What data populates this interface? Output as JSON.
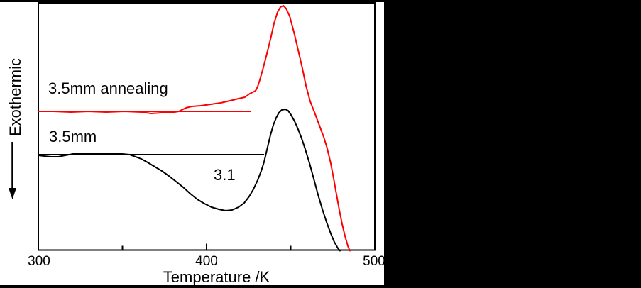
{
  "figure": {
    "background_color": "#ffffff",
    "side_panel_color": "#000000",
    "frame_color": "#000000"
  },
  "labels": {
    "y_axis": "Exothermic",
    "y_axis_arrow_direction": "down",
    "x_axis": "Temperature /K",
    "curve_red": "3.5mm annealing",
    "curve_black": "3.5mm",
    "annotation": "3.1"
  },
  "chart_data": {
    "type": "line",
    "title": "",
    "xlabel": "Temperature /K",
    "ylabel": "Exothermic (arrow pointing down, arbitrary units)",
    "x_range": [
      300,
      500
    ],
    "grid": false,
    "legend": "inline text labels",
    "x_axis": {
      "tick_labels": [
        "300",
        "400",
        "500"
      ],
      "major_ticks": [
        300,
        400,
        500
      ],
      "minor_ticks": [
        350,
        450
      ],
      "ticks_inward": true
    },
    "y_units_note": "u = arbitrary signal, pixels above x-axis; no y scale shown",
    "mapping": {
      "t_min": 300,
      "t_max": 500,
      "x_min": 54,
      "x_max": 528,
      "y_bottom": 352.5
    },
    "features": {
      "red_baseline_level_u": 195.5,
      "black_baseline_level_u": 134.5,
      "red_peak_K": 446,
      "red_peak_u": 344.5,
      "black_peak_K": 447,
      "black_peak_u": 198.5,
      "black_dip_K": 411,
      "black_dip_u": 55.5,
      "red_curve_ends_K": 485,
      "black_curve_ends_K": 479
    },
    "baselines": [
      {
        "id": "red-baseline",
        "color": "#ff0000",
        "t_start": 300,
        "t_end": 426.2,
        "u": 195.5
      },
      {
        "id": "black-baseline",
        "color": "#000000",
        "t_start": 300,
        "t_end": 434.2,
        "u": 134.5
      }
    ],
    "series": [
      {
        "id": "curve-annealing",
        "name": "3.5mm annealing",
        "color": "#ff0000",
        "points": [
          [
            300,
            195.5
          ],
          [
            308.9,
            195.5
          ],
          [
            319.4,
            194.5
          ],
          [
            330,
            195.5
          ],
          [
            340.5,
            194.5
          ],
          [
            351.1,
            195.5
          ],
          [
            361.6,
            194.5
          ],
          [
            367.1,
            192.5
          ],
          [
            373,
            193.5
          ],
          [
            378.5,
            193.5
          ],
          [
            383.5,
            195.5
          ],
          [
            387.8,
            200.5
          ],
          [
            391.1,
            202.5
          ],
          [
            396.6,
            203.5
          ],
          [
            402.5,
            205.5
          ],
          [
            408.4,
            207.5
          ],
          [
            413.9,
            210.5
          ],
          [
            419,
            213.5
          ],
          [
            422.8,
            215.5
          ],
          [
            425.7,
            220.5
          ],
          [
            427.4,
            222.5
          ],
          [
            429.1,
            224.5
          ],
          [
            430.4,
            230.5
          ],
          [
            431.6,
            239.5
          ],
          [
            433.3,
            253.5
          ],
          [
            435.4,
            272.5
          ],
          [
            438,
            297.5
          ],
          [
            440.1,
            319.5
          ],
          [
            442.2,
            335.5
          ],
          [
            443.9,
            342.5
          ],
          [
            445.6,
            344.5
          ],
          [
            447.3,
            340.5
          ],
          [
            449.4,
            329.5
          ],
          [
            451.9,
            307.5
          ],
          [
            454.4,
            282.5
          ],
          [
            457,
            255.5
          ],
          [
            459.1,
            231.5
          ],
          [
            461.6,
            209.5
          ],
          [
            464.1,
            194.5
          ],
          [
            467.1,
            175.5
          ],
          [
            469.6,
            159.5
          ],
          [
            471.7,
            143.5
          ],
          [
            473.8,
            122.5
          ],
          [
            475.5,
            101.5
          ],
          [
            477.2,
            78.5
          ],
          [
            478.9,
            56.5
          ],
          [
            480.6,
            36.5
          ],
          [
            482.3,
            19.5
          ],
          [
            484,
            5.5
          ],
          [
            485.2,
            -1
          ]
        ]
      },
      {
        "id": "curve-asquenched",
        "name": "3.5mm",
        "color": "#000000",
        "points": [
          [
            300,
            133.5
          ],
          [
            303.4,
            132.5
          ],
          [
            307.6,
            131.5
          ],
          [
            311.8,
            131.5
          ],
          [
            316,
            133.5
          ],
          [
            320.7,
            135.5
          ],
          [
            325.7,
            136.5
          ],
          [
            332.1,
            136.5
          ],
          [
            338.4,
            136.5
          ],
          [
            343.9,
            135.5
          ],
          [
            349.8,
            135.5
          ],
          [
            354.4,
            134.5
          ],
          [
            357.8,
            131.5
          ],
          [
            361.2,
            128.5
          ],
          [
            365,
            123.5
          ],
          [
            369.2,
            117.5
          ],
          [
            373.4,
            111.5
          ],
          [
            377.6,
            104.5
          ],
          [
            381.9,
            96.5
          ],
          [
            386.1,
            88.5
          ],
          [
            390.3,
            79.5
          ],
          [
            394.5,
            71.5
          ],
          [
            398.7,
            65.5
          ],
          [
            402.9,
            60.5
          ],
          [
            407.2,
            57.5
          ],
          [
            411.4,
            55.5
          ],
          [
            415.2,
            56.5
          ],
          [
            419,
            60.5
          ],
          [
            422.4,
            66.5
          ],
          [
            425.3,
            75.5
          ],
          [
            427.8,
            85.5
          ],
          [
            430.4,
            98.5
          ],
          [
            432.5,
            111.5
          ],
          [
            434.2,
            124.5
          ],
          [
            435.4,
            136.5
          ],
          [
            436.7,
            149.5
          ],
          [
            438,
            162.5
          ],
          [
            439.7,
            176.5
          ],
          [
            441.4,
            186.5
          ],
          [
            443,
            193.5
          ],
          [
            444.7,
            197.5
          ],
          [
            446.8,
            198.5
          ],
          [
            448.5,
            196.5
          ],
          [
            450.2,
            190.5
          ],
          [
            452.3,
            181.5
          ],
          [
            454.4,
            170.5
          ],
          [
            456.5,
            157.5
          ],
          [
            458.6,
            142.5
          ],
          [
            461.2,
            122.5
          ],
          [
            463.7,
            100.5
          ],
          [
            466.2,
            78.5
          ],
          [
            468.8,
            57.5
          ],
          [
            471.3,
            39.5
          ],
          [
            473.8,
            23.5
          ],
          [
            475.9,
            11.5
          ],
          [
            478.1,
            2.5
          ],
          [
            479.3,
            -1
          ]
        ]
      }
    ]
  }
}
